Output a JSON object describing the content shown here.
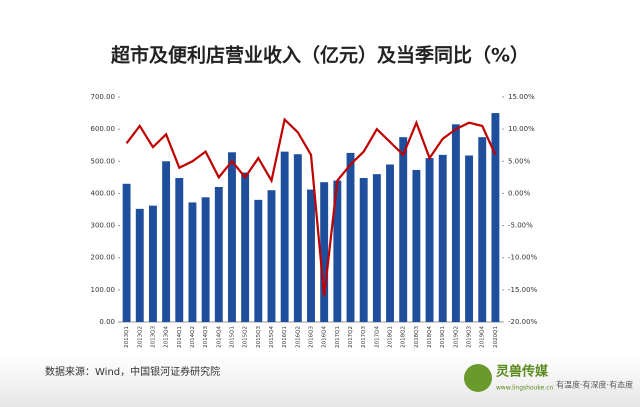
{
  "chart_data": {
    "type": "bar_line",
    "title": "超市及便利店营业收入（亿元）及当季同比（%）",
    "source": "数据来源：Wind，中国银河证券研究院",
    "categories": [
      "2013Q1",
      "2013Q2",
      "2013Q3",
      "2013Q4",
      "2014Q1",
      "2014Q2",
      "2014Q3",
      "2014Q4",
      "2015Q1",
      "2015Q2",
      "2015Q3",
      "2015Q4",
      "2016Q1",
      "2016Q2",
      "2016Q3",
      "2016Q4",
      "2017Q1",
      "2017Q2",
      "2017Q3",
      "2017Q4",
      "2018Q1",
      "2018Q2",
      "2018Q3",
      "2018Q4",
      "2019Q1",
      "2019Q2",
      "2019Q3",
      "2019Q4",
      "2020Q1"
    ],
    "series": [
      {
        "type": "bar",
        "color": "#1f4e9c",
        "axis": "y",
        "values": [
          430,
          352,
          362,
          500,
          448,
          372,
          388,
          420,
          528,
          465,
          380,
          410,
          530,
          522,
          412,
          435,
          440,
          526,
          448,
          460,
          490,
          575,
          473,
          510,
          520,
          615,
          518,
          575,
          650
        ]
      },
      {
        "type": "line",
        "color": "#c00000",
        "axis": "y2",
        "values": [
          7.8,
          10.5,
          7.2,
          9.2,
          4,
          5,
          6.5,
          2.5,
          5,
          2.5,
          5.5,
          2,
          11.5,
          9.5,
          6,
          -16,
          2,
          4.5,
          6.5,
          10,
          8,
          6,
          11,
          5.5,
          8.5,
          10,
          11,
          10.5,
          6
        ]
      }
    ],
    "ylim": [
      0,
      700
    ],
    "yticks": [
      {
        "value": 0,
        "label": "0.00"
      },
      {
        "value": 100,
        "label": "100.00"
      },
      {
        "value": 200,
        "label": "200.00"
      },
      {
        "value": 300,
        "label": "300.00"
      },
      {
        "value": 400,
        "label": "400.00"
      },
      {
        "value": 500,
        "label": "500.00"
      },
      {
        "value": 600,
        "label": "600.00"
      },
      {
        "value": 700,
        "label": "700.00"
      }
    ],
    "y2lim": [
      -20,
      15
    ],
    "y2ticks": [
      {
        "value": -20,
        "label": "-20.00%"
      },
      {
        "value": -15,
        "label": "-15.00%"
      },
      {
        "value": -10,
        "label": "-10.00%"
      },
      {
        "value": -5,
        "label": "-5.00%"
      },
      {
        "value": 0,
        "label": "0.00%"
      },
      {
        "value": 5,
        "label": "5.00%"
      },
      {
        "value": 10,
        "label": "10.00%"
      },
      {
        "value": 15,
        "label": "15.00%"
      }
    ]
  },
  "brand": {
    "name": "灵兽传媒",
    "url": "www.lingshouke.cn",
    "slogan": "有温度·有深度·有态度"
  }
}
